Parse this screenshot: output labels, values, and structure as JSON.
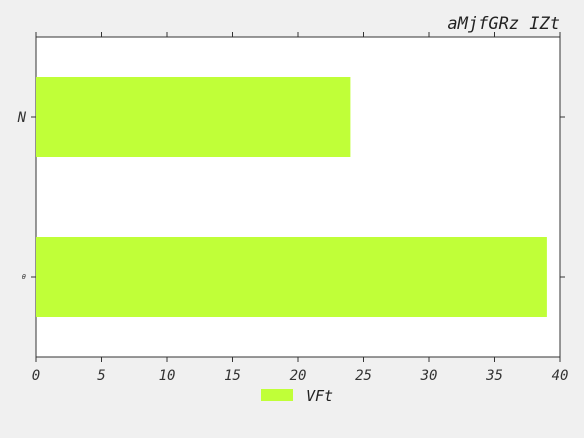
{
  "chart_data": {
    "type": "bar",
    "orientation": "horizontal",
    "title": "aMjfGRz IZt",
    "xlabel": "",
    "ylabel": "",
    "categories": [
      "N",
      "θ"
    ],
    "series": [
      {
        "name": "VFt",
        "values": [
          24,
          39
        ],
        "color": "#c0ff38"
      }
    ],
    "xlim": [
      0,
      40
    ],
    "xticks": [
      0,
      5,
      10,
      15,
      20,
      25,
      30,
      35,
      40
    ],
    "grid": false,
    "legend_position": "bottom-center"
  },
  "colors": {
    "background": "#f0f0f0",
    "plot_area": "#ffffff",
    "bar": "#c0ff38",
    "axis": "#333333"
  }
}
